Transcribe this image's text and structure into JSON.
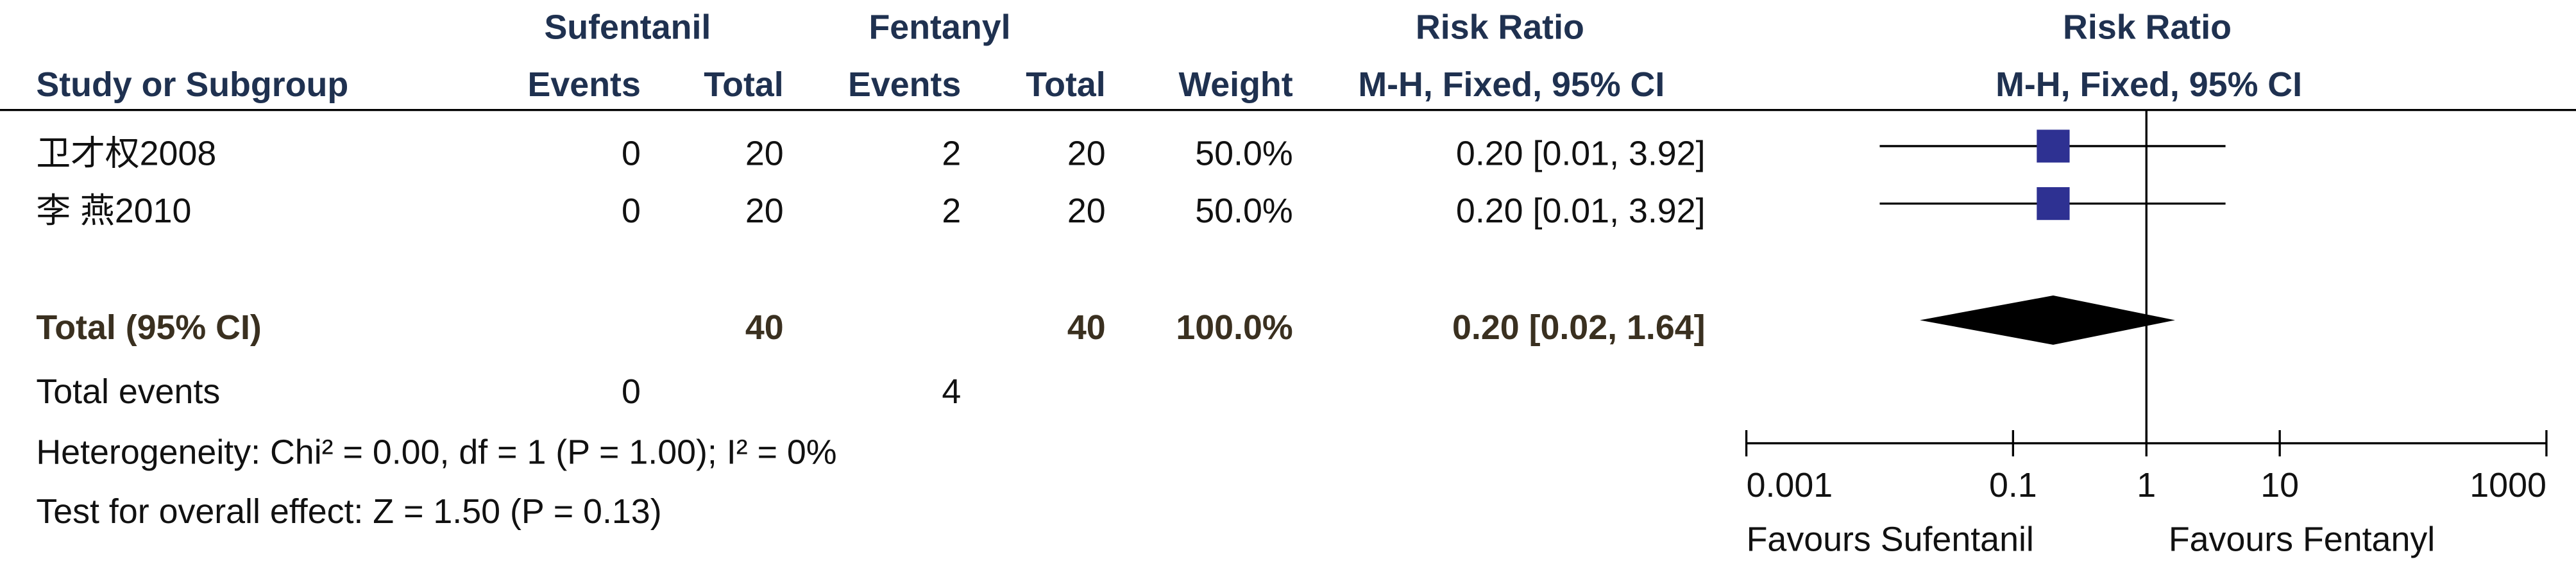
{
  "chart_data": {
    "type": "forest",
    "group_headers": {
      "experimental": "Sufentanil",
      "control": "Fentanyl",
      "ci_column": "Risk Ratio",
      "plot": "Risk Ratio"
    },
    "columns": {
      "study": "Study or Subgroup",
      "events_1": "Events",
      "total_1": "Total",
      "events_2": "Events",
      "total_2": "Total",
      "weight": "Weight",
      "ci": "M-H, Fixed, 95% CI",
      "plot": "M-H, Fixed, 95% CI"
    },
    "studies": [
      {
        "name": "卫才权2008",
        "events_1": 0,
        "total_1": 20,
        "events_2": 2,
        "total_2": 20,
        "weight": "50.0%",
        "rr": 0.2,
        "ci": [
          0.01,
          3.92
        ],
        "ci_label": "0.20 [0.01, 3.92]"
      },
      {
        "name": "李 燕2010",
        "events_1": 0,
        "total_1": 20,
        "events_2": 2,
        "total_2": 20,
        "weight": "50.0%",
        "rr": 0.2,
        "ci": [
          0.01,
          3.92
        ],
        "ci_label": "0.20 [0.01, 3.92]"
      }
    ],
    "total": {
      "name": "Total (95% CI)",
      "total_1": 40,
      "total_2": 40,
      "weight": "100.0%",
      "rr": 0.2,
      "ci": [
        0.02,
        1.64
      ],
      "ci_label": "0.20 [0.02, 1.64]"
    },
    "total_events": {
      "label": "Total events",
      "events_1": 0,
      "events_2": 4
    },
    "heterogeneity": "Heterogeneity: Chi² = 0.00, df = 1 (P = 1.00); I² = 0%",
    "overall_effect": "Test for overall effect: Z = 1.50 (P = 0.13)",
    "x_scale": "log",
    "xlim": [
      0.001,
      1000
    ],
    "xticks": [
      0.001,
      0.1,
      1,
      10,
      1000
    ],
    "reference": 1,
    "x_labels": {
      "left": "Favours Sufentanil",
      "right": "Favours Fentanyl"
    },
    "colors": {
      "study": "#2e3192",
      "total": "#000000"
    }
  }
}
